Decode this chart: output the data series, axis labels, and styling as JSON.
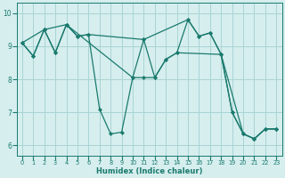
{
  "xlabel": "Humidex (Indice chaleur)",
  "xlim": [
    -0.5,
    23.5
  ],
  "ylim": [
    5.7,
    10.3
  ],
  "xticks": [
    0,
    1,
    2,
    3,
    4,
    5,
    6,
    7,
    8,
    9,
    10,
    11,
    12,
    13,
    14,
    15,
    16,
    17,
    18,
    19,
    20,
    21,
    22,
    23
  ],
  "yticks": [
    6,
    7,
    8,
    9,
    10
  ],
  "line_color": "#1a7a6e",
  "bg_color": "#d6eeee",
  "grid_color": "#aad4d4",
  "line1_x": [
    0,
    1,
    2,
    3,
    4,
    5,
    6,
    7,
    8,
    9,
    10,
    11,
    12,
    13,
    14,
    15,
    16,
    17,
    18,
    19,
    20,
    21,
    22,
    23
  ],
  "line1_y": [
    9.1,
    8.7,
    9.5,
    8.8,
    9.65,
    9.3,
    9.35,
    7.1,
    6.35,
    6.4,
    8.05,
    9.2,
    8.05,
    8.6,
    8.8,
    9.8,
    9.3,
    9.4,
    8.75,
    7.0,
    6.35,
    6.2,
    6.5,
    6.5
  ],
  "line2_x": [
    0,
    2,
    4,
    5,
    6,
    11,
    15,
    16,
    17,
    18,
    20,
    21,
    22,
    23
  ],
  "line2_y": [
    9.1,
    9.5,
    9.65,
    9.3,
    9.35,
    9.2,
    9.8,
    9.3,
    9.4,
    8.75,
    6.35,
    6.2,
    6.5,
    6.5
  ],
  "line3_x": [
    0,
    1,
    2,
    3,
    4,
    10,
    11,
    12,
    13,
    14,
    18,
    19,
    20,
    21,
    22,
    23
  ],
  "line3_y": [
    9.1,
    8.7,
    9.5,
    8.8,
    9.65,
    8.05,
    8.05,
    8.05,
    8.6,
    8.8,
    8.75,
    7.0,
    6.35,
    6.2,
    6.5,
    6.5
  ]
}
